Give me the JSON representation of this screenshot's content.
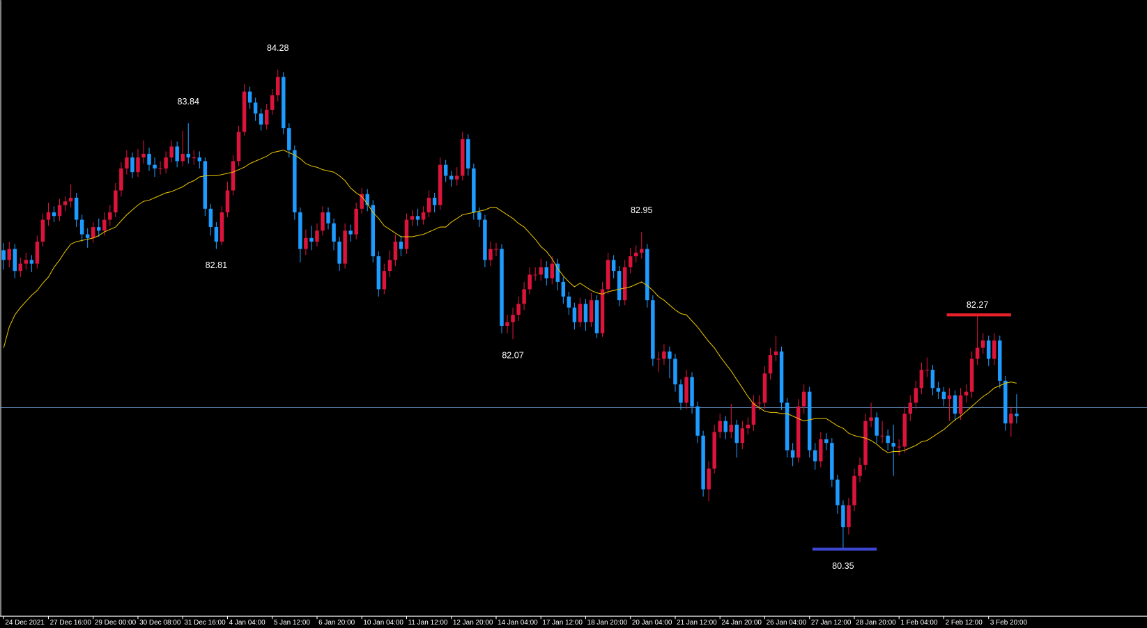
{
  "chart_data": {
    "type": "candlestick",
    "up_color": "#dc143c",
    "down_color": "#1e9bff",
    "ma_color": "#e6c200",
    "hline": 81.51,
    "hline_color": "#6f9fcf",
    "ylim": [
      79.8,
      84.85
    ],
    "xlim": [
      -0.65,
      204.3
    ],
    "xticks": [
      {
        "value": 0,
        "label": "24 Dec 2021"
      },
      {
        "value": 8,
        "label": "27 Dec 16:00"
      },
      {
        "value": 16,
        "label": "29 Dec 00:00"
      },
      {
        "value": 24,
        "label": "30 Dec 08:00"
      },
      {
        "value": 32,
        "label": "31 Dec 16:00"
      },
      {
        "value": 40,
        "label": "4 Jan 04:00"
      },
      {
        "value": 48,
        "label": "5 Jan 12:00"
      },
      {
        "value": 56,
        "label": "6 Jan 20:00"
      },
      {
        "value": 64,
        "label": "10 Jan 04:00"
      },
      {
        "value": 72,
        "label": "11 Jan 12:00"
      },
      {
        "value": 80,
        "label": "12 Jan 20:00"
      },
      {
        "value": 88,
        "label": "14 Jan 04:00"
      },
      {
        "value": 96,
        "label": "17 Jan 12:00"
      },
      {
        "value": 104,
        "label": "18 Jan 20:00"
      },
      {
        "value": 112,
        "label": "20 Jan 04:00"
      },
      {
        "value": 120,
        "label": "21 Jan 12:00"
      },
      {
        "value": 128,
        "label": "24 Jan 20:00"
      },
      {
        "value": 136,
        "label": "26 Jan 04:00"
      },
      {
        "value": 144,
        "label": "27 Jan 12:00"
      },
      {
        "value": 152,
        "label": "28 Jan 20:00"
      },
      {
        "value": 160,
        "label": "1 Feb 04:00"
      },
      {
        "value": 168,
        "label": "2 Feb 12:00"
      },
      {
        "value": 176,
        "label": "3 Feb 20:00"
      }
    ],
    "open": [
      82.8,
      82.72,
      82.81,
      82.63,
      82.69,
      82.72,
      82.69,
      82.87,
      83.05,
      83.11,
      83.08,
      83.17,
      83.2,
      83.23,
      83.05,
      82.93,
      82.9,
      82.99,
      82.96,
      83.05,
      83.11,
      83.29,
      83.47,
      83.56,
      83.44,
      83.56,
      83.59,
      83.5,
      83.47,
      83.47,
      83.56,
      83.65,
      83.53,
      83.59,
      83.56,
      83.56,
      83.53,
      83.14,
      82.99,
      82.87,
      83.11,
      83.29,
      83.53,
      83.77,
      84.1,
      84.01,
      83.92,
      83.83,
      83.95,
      84.07,
      84.22,
      83.8,
      83.62,
      83.11,
      82.81,
      82.9,
      82.87,
      82.96,
      83.11,
      83.02,
      82.87,
      82.69,
      82.96,
      82.93,
      83.14,
      83.26,
      83.17,
      82.75,
      82.48,
      82.63,
      82.72,
      82.87,
      82.81,
      83.05,
      83.08,
      83.05,
      83.11,
      83.23,
      83.17,
      83.5,
      83.41,
      83.38,
      83.41,
      83.71,
      83.47,
      83.11,
      83.05,
      82.72,
      82.81,
      82.81,
      82.18,
      82.21,
      82.27,
      82.36,
      82.48,
      82.6,
      82.6,
      82.66,
      82.57,
      82.69,
      82.54,
      82.42,
      82.33,
      82.21,
      82.36,
      82.21,
      82.39,
      82.12,
      82.48,
      82.72,
      82.63,
      82.39,
      82.66,
      82.75,
      82.78,
      82.81,
      82.39,
      81.91,
      81.91,
      81.97,
      81.91,
      81.7,
      81.55,
      81.76,
      81.52,
      81.28,
      80.84,
      81.01,
      81.31,
      81.4,
      81.31,
      81.37,
      81.22,
      81.34,
      81.37,
      81.55,
      81.55,
      81.79,
      81.94,
      81.97,
      81.55,
      81.16,
      81.1,
      81.52,
      81.64,
      81.16,
      81.07,
      81.25,
      81.22,
      80.92,
      80.71,
      80.53,
      80.71,
      80.95,
      81.04,
      81.4,
      81.43,
      81.28,
      81.28,
      81.22,
      81.19,
      81.19,
      81.46,
      81.55,
      81.67,
      81.82,
      81.82,
      81.67,
      81.64,
      81.58,
      81.61,
      81.46,
      81.61,
      81.64,
      81.91,
      82.0,
      82.06,
      81.91,
      82.06,
      81.73,
      81.38,
      81.46
    ],
    "high": [
      82.86,
      82.87,
      82.85,
      82.74,
      82.78,
      82.76,
      82.92,
      83.1,
      83.19,
      83.16,
      83.22,
      83.24,
      83.34,
      83.27,
      83.09,
      82.98,
      83.03,
      83.06,
      83.11,
      83.17,
      83.35,
      83.52,
      83.62,
      83.6,
      83.63,
      83.7,
      83.64,
      83.56,
      83.53,
      83.61,
      83.7,
      83.69,
      83.78,
      83.84,
      83.62,
      83.61,
      83.56,
      83.18,
      83.03,
      83.16,
      83.36,
      83.58,
      83.82,
      84.16,
      84.14,
      84.05,
      83.96,
      84.0,
      84.12,
      84.28,
      84.26,
      83.84,
      83.66,
      83.15,
      82.97,
      83.0,
      83.02,
      83.16,
      83.15,
      83.06,
      82.91,
      83.02,
      83.01,
      83.19,
      83.31,
      83.3,
      83.21,
      82.79,
      82.69,
      82.8,
      82.93,
      82.92,
      83.1,
      83.13,
      83.14,
      83.16,
      83.29,
      83.27,
      83.56,
      83.54,
      83.45,
      83.48,
      83.77,
      83.75,
      83.51,
      83.15,
      83.09,
      82.87,
      82.86,
      82.85,
      82.27,
      82.33,
      82.42,
      82.54,
      82.66,
      82.66,
      82.73,
      82.71,
      82.75,
      82.73,
      82.58,
      82.46,
      82.37,
      82.41,
      82.4,
      82.45,
      82.43,
      82.54,
      82.78,
      82.76,
      82.67,
      82.72,
      82.82,
      82.84,
      82.95,
      82.85,
      82.43,
      81.97,
      82.03,
      82.01,
      81.95,
      81.74,
      81.82,
      81.8,
      81.56,
      81.32,
      81.07,
      81.37,
      81.46,
      81.44,
      81.54,
      81.41,
      81.4,
      81.43,
      81.61,
      81.61,
      81.85,
      82.0,
      82.1,
      82.01,
      81.59,
      81.22,
      81.58,
      81.7,
      81.68,
      81.22,
      81.31,
      81.3,
      81.26,
      80.96,
      80.75,
      80.77,
      81.01,
      81.1,
      81.46,
      81.55,
      81.47,
      81.4,
      81.33,
      81.37,
      81.25,
      81.52,
      81.61,
      81.73,
      81.88,
      81.92,
      81.86,
      81.72,
      81.68,
      81.67,
      81.65,
      81.67,
      81.7,
      81.97,
      82.27,
      82.12,
      82.1,
      82.12,
      82.1,
      81.77,
      81.52,
      81.62
    ],
    "low": [
      82.64,
      82.66,
      82.57,
      82.58,
      82.64,
      82.62,
      82.65,
      82.83,
      83.0,
      83.03,
      83.04,
      83.12,
      83.15,
      82.99,
      82.87,
      82.82,
      82.86,
      82.91,
      82.92,
      83.0,
      83.07,
      83.24,
      83.42,
      83.39,
      83.4,
      83.51,
      83.45,
      83.4,
      83.42,
      83.43,
      83.52,
      83.48,
      83.49,
      83.51,
      83.5,
      83.47,
      83.08,
      82.92,
      82.81,
      82.84,
      83.07,
      83.25,
      83.49,
      83.74,
      83.96,
      83.86,
      83.78,
      83.79,
      83.91,
      84.02,
      83.75,
      83.56,
      83.05,
      82.7,
      82.76,
      82.8,
      82.83,
      82.92,
      82.97,
      82.8,
      82.63,
      82.65,
      82.87,
      82.89,
      83.1,
      83.12,
      82.7,
      82.42,
      82.44,
      82.58,
      82.67,
      82.75,
      82.77,
      83.0,
      83.0,
      83.01,
      83.07,
      83.11,
      83.13,
      83.36,
      83.32,
      83.33,
      83.37,
      83.41,
      83.05,
      82.99,
      82.66,
      82.67,
      82.75,
      82.12,
      82.12,
      82.07,
      82.22,
      82.31,
      82.44,
      82.55,
      82.55,
      82.51,
      82.52,
      82.47,
      82.36,
      82.27,
      82.15,
      82.17,
      82.14,
      82.17,
      82.08,
      82.09,
      82.44,
      82.57,
      82.34,
      82.35,
      82.61,
      82.7,
      82.73,
      82.33,
      81.85,
      81.8,
      81.86,
      81.75,
      81.64,
      81.49,
      81.5,
      81.46,
      81.22,
      80.78,
      80.74,
      80.97,
      81.26,
      81.25,
      81.26,
      81.1,
      81.17,
      81.29,
      81.32,
      81.49,
      81.5,
      81.74,
      81.89,
      81.49,
      81.1,
      81.03,
      81.06,
      81.46,
      81.1,
      81.0,
      81.02,
      81.16,
      80.86,
      80.64,
      80.35,
      80.47,
      80.66,
      80.9,
      81.0,
      81.35,
      81.22,
      81.22,
      81.16,
      80.95,
      81.12,
      81.14,
      81.4,
      81.5,
      81.62,
      81.76,
      81.61,
      81.58,
      81.52,
      81.4,
      81.4,
      81.41,
      81.55,
      81.59,
      81.86,
      81.95,
      81.85,
      81.86,
      81.67,
      81.32,
      81.27,
      81.38
    ],
    "close": [
      82.72,
      82.81,
      82.63,
      82.69,
      82.72,
      82.69,
      82.87,
      83.05,
      83.11,
      83.08,
      83.17,
      83.2,
      83.23,
      83.05,
      82.93,
      82.9,
      82.99,
      82.96,
      83.05,
      83.11,
      83.29,
      83.47,
      83.56,
      83.44,
      83.56,
      83.59,
      83.5,
      83.47,
      83.47,
      83.56,
      83.65,
      83.53,
      83.59,
      83.56,
      83.56,
      83.53,
      83.14,
      82.99,
      82.87,
      83.11,
      83.29,
      83.53,
      83.77,
      84.1,
      84.01,
      83.92,
      83.83,
      83.95,
      84.07,
      84.22,
      83.8,
      83.62,
      83.11,
      82.81,
      82.9,
      82.87,
      82.96,
      83.11,
      83.02,
      82.87,
      82.69,
      82.96,
      82.93,
      83.14,
      83.26,
      83.17,
      82.75,
      82.48,
      82.63,
      82.72,
      82.87,
      82.81,
      83.05,
      83.08,
      83.05,
      83.11,
      83.23,
      83.17,
      83.5,
      83.41,
      83.38,
      83.41,
      83.71,
      83.47,
      83.11,
      83.05,
      82.72,
      82.81,
      82.81,
      82.18,
      82.21,
      82.27,
      82.36,
      82.48,
      82.6,
      82.6,
      82.66,
      82.57,
      82.69,
      82.54,
      82.42,
      82.33,
      82.21,
      82.36,
      82.21,
      82.39,
      82.12,
      82.48,
      82.72,
      82.63,
      82.39,
      82.66,
      82.75,
      82.78,
      82.81,
      82.39,
      81.91,
      81.91,
      81.97,
      81.91,
      81.7,
      81.55,
      81.76,
      81.52,
      81.28,
      80.84,
      81.01,
      81.31,
      81.4,
      81.31,
      81.37,
      81.22,
      81.34,
      81.37,
      81.55,
      81.55,
      81.79,
      81.94,
      81.97,
      81.55,
      81.16,
      81.1,
      81.52,
      81.64,
      81.16,
      81.07,
      81.25,
      81.22,
      80.92,
      80.71,
      80.53,
      80.71,
      80.95,
      81.04,
      81.4,
      81.43,
      81.28,
      81.28,
      81.22,
      81.19,
      81.19,
      81.46,
      81.55,
      81.67,
      81.82,
      81.82,
      81.67,
      81.64,
      81.58,
      81.61,
      81.46,
      81.61,
      81.64,
      81.91,
      82.0,
      82.06,
      81.91,
      82.06,
      81.73,
      81.38,
      81.46,
      81.44
    ],
    "ma": [
      82.0,
      82.17,
      82.27,
      82.33,
      82.38,
      82.43,
      82.47,
      82.53,
      82.58,
      82.66,
      82.72,
      82.79,
      82.85,
      82.87,
      82.88,
      82.89,
      82.9,
      82.92,
      82.95,
      82.97,
      82.99,
      83.04,
      83.09,
      83.13,
      83.17,
      83.2,
      83.21,
      83.23,
      83.25,
      83.27,
      83.28,
      83.3,
      83.32,
      83.35,
      83.37,
      83.4,
      83.41,
      83.41,
      83.41,
      83.42,
      83.43,
      83.44,
      83.46,
      83.48,
      83.51,
      83.53,
      83.55,
      83.57,
      83.6,
      83.61,
      83.62,
      83.6,
      83.58,
      83.55,
      83.51,
      83.49,
      83.48,
      83.46,
      83.45,
      83.44,
      83.41,
      83.37,
      83.31,
      83.27,
      83.24,
      83.18,
      83.11,
      83.06,
      83.0,
      82.97,
      82.94,
      82.91,
      82.91,
      82.91,
      82.92,
      82.93,
      82.95,
      82.97,
      82.99,
      82.99,
      83.03,
      83.06,
      83.09,
      83.1,
      83.11,
      83.12,
      83.13,
      83.15,
      83.15,
      83.12,
      83.09,
      83.06,
      83.02,
      82.99,
      82.94,
      82.89,
      82.83,
      82.79,
      82.73,
      82.65,
      82.59,
      82.54,
      82.5,
      82.53,
      82.5,
      82.47,
      82.45,
      82.44,
      82.46,
      82.47,
      82.48,
      82.49,
      82.5,
      82.52,
      82.54,
      82.51,
      82.47,
      82.42,
      82.39,
      82.35,
      82.31,
      82.28,
      82.27,
      82.22,
      82.17,
      82.11,
      82.05,
      82.0,
      81.93,
      81.87,
      81.81,
      81.74,
      81.67,
      81.6,
      81.54,
      81.51,
      81.48,
      81.47,
      81.47,
      81.46,
      81.46,
      81.44,
      81.42,
      81.4,
      81.41,
      81.42,
      81.42,
      81.42,
      81.39,
      81.36,
      81.34,
      81.3,
      81.28,
      81.27,
      81.26,
      81.24,
      81.21,
      81.17,
      81.14,
      81.15,
      81.15,
      81.16,
      81.18,
      81.2,
      81.23,
      81.24,
      81.27,
      81.3,
      81.33,
      81.37,
      81.41,
      81.44,
      81.48,
      81.52,
      81.56,
      81.6,
      81.63,
      81.67,
      81.69,
      81.71,
      81.72,
      81.71
    ],
    "annotations": [
      {
        "candle": 49,
        "value": 84.28,
        "side": "high"
      },
      {
        "candle": 33,
        "value": 83.84,
        "side": "high"
      },
      {
        "candle": 38,
        "value": 82.81,
        "side": "low"
      },
      {
        "candle": 114,
        "value": 82.95,
        "side": "high"
      },
      {
        "candle": 91,
        "value": 82.07,
        "side": "low"
      },
      {
        "candle": 174,
        "value": 82.27,
        "side": "high",
        "line_color": "#e8202a"
      },
      {
        "candle": 150,
        "value": 80.35,
        "side": "low",
        "line_color": "#3c46d2"
      }
    ]
  }
}
